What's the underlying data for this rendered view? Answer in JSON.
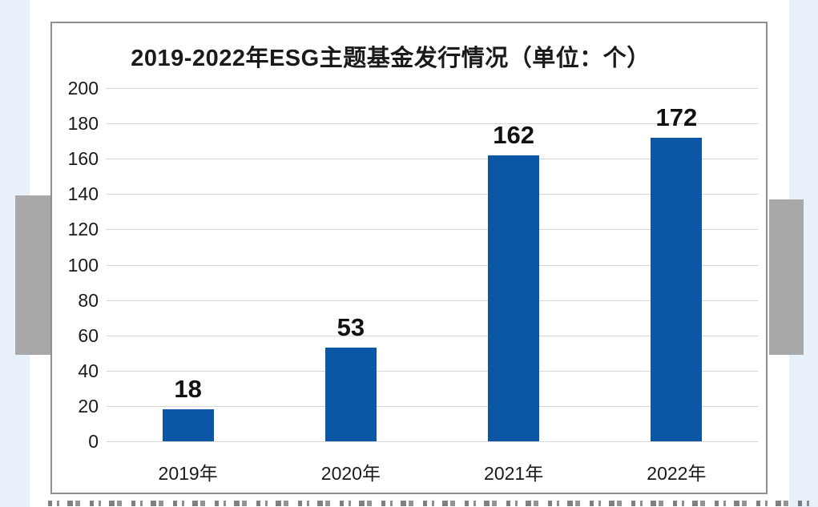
{
  "colors": {
    "background": "#ffffff",
    "side_strip": "#e8f1f9",
    "scroll_handle": "#a8a8a8",
    "chart_border": "#8f8f8f",
    "gridline": "#d6d6d6",
    "text": "#1a1a1a",
    "bar": "#0c57a5"
  },
  "chart_data": {
    "type": "bar",
    "title": "2019-2022年ESG主题基金发行情况（单位：个）",
    "categories": [
      "2019年",
      "2020年",
      "2021年",
      "2022年"
    ],
    "values": [
      18,
      53,
      162,
      172
    ],
    "xlabel": "",
    "ylabel": "",
    "ylim": [
      0,
      200
    ],
    "ytick_step": 20,
    "yticks": [
      0,
      20,
      40,
      60,
      80,
      100,
      120,
      140,
      160,
      180,
      200
    ],
    "grid": true,
    "legend": "none",
    "data_labels_shown": true,
    "bar_color": "#0c57a5"
  }
}
